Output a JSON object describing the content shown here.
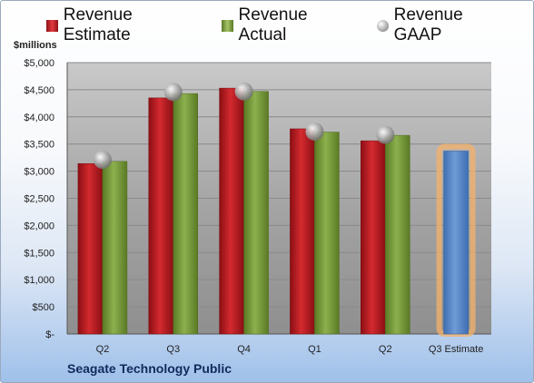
{
  "legend": {
    "estimate": "Revenue Estimate",
    "actual": "Revenue Actual",
    "gaap": "Revenue GAAP"
  },
  "unit_label": "$millions",
  "footer": "Seagate Technology Public",
  "colors": {
    "estimate": "#d42a2f",
    "actual": "#8cb04e",
    "gaap": "#b0b0b0",
    "projected": "#6f9bd6",
    "projected_glow": "#f6b26b",
    "title": "#102a5c"
  },
  "chart_data": {
    "type": "bar",
    "categories": [
      "Q2",
      "Q3",
      "Q4",
      "Q1",
      "Q2",
      "Q3 Estimate"
    ],
    "series": [
      {
        "name": "Revenue Estimate",
        "values": [
          3140,
          4350,
          4530,
          3780,
          3560,
          3370
        ]
      },
      {
        "name": "Revenue Actual",
        "values": [
          3180,
          4430,
          4470,
          3720,
          3660,
          null
        ]
      },
      {
        "name": "Revenue GAAP",
        "type": "scatter",
        "values": [
          3210,
          4460,
          4470,
          3730,
          3670,
          null
        ]
      }
    ],
    "ylim": [
      0,
      5000
    ],
    "yticks": [
      0,
      500,
      1000,
      1500,
      2000,
      2500,
      3000,
      3500,
      4000,
      4500,
      5000
    ],
    "ytick_labels": [
      "$-",
      "$500",
      "$1,000",
      "$1,500",
      "$2,000",
      "$2,500",
      "$3,000",
      "$3,500",
      "$4,000",
      "$4,500",
      "$5,000"
    ],
    "grid": true,
    "legend_position": "top"
  }
}
